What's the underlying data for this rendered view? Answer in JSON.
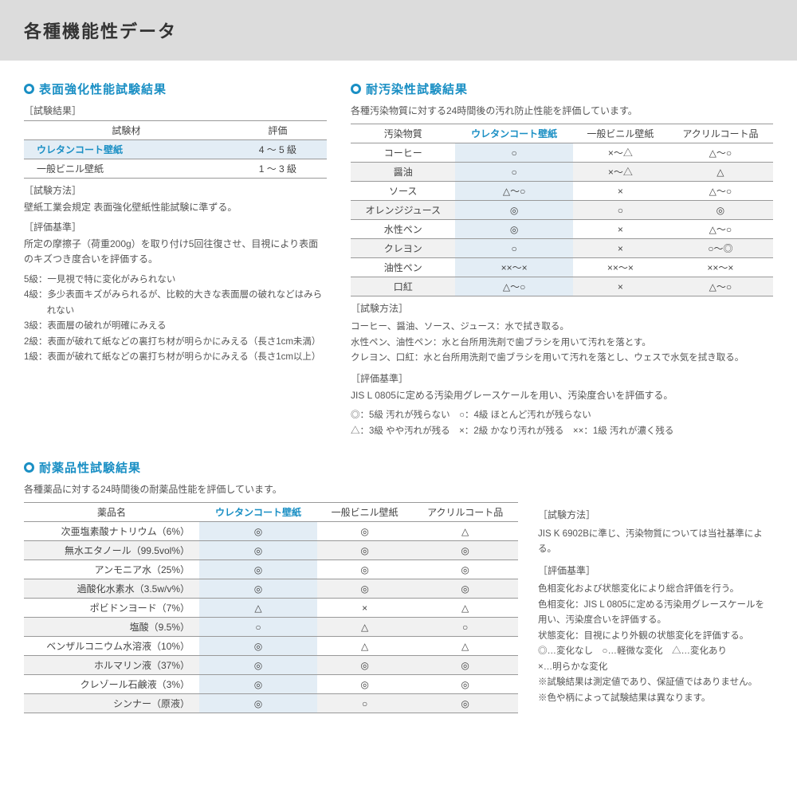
{
  "header": "各種機能性データ",
  "s1": {
    "title": "表面強化性能試験結果",
    "sub_results": "［試験結果］",
    "th1": "試験材",
    "th2": "評価",
    "rows": [
      {
        "mat": "ウレタンコート壁紙",
        "val": "4 〜 5 級",
        "u": true
      },
      {
        "mat": "一般ビニル壁紙",
        "val": "1 〜 3 級",
        "u": false
      }
    ],
    "sub_method": "［試験方法］",
    "method": "壁紙工業会規定 表面強化壁紙性能試験に準ずる。",
    "sub_crit": "［評価基準］",
    "crit": "所定の摩擦子（荷重200g）を取り付け5回往復させ、目視により表面のキズつき度合いを評価する。",
    "grades": [
      "5級：一見視で特に変化がみられない",
      "4級：多少表面キズがみられるが、比較的大きな表面層の破れなどはみられない",
      "3級：表面層の破れが明確にみえる",
      "2級：表面が破れて紙などの裏打ち材が明らかにみえる（長さ1cm未満）",
      "1級：表面が破れて紙などの裏打ち材が明らかにみえる（長さ1cm以上）"
    ]
  },
  "s2": {
    "title": "耐汚染性試験結果",
    "desc": "各種汚染物質に対する24時間後の汚れ防止性能を評価しています。",
    "th": [
      "汚染物質",
      "ウレタンコート壁紙",
      "一般ビニル壁紙",
      "アクリルコート品"
    ],
    "rows": [
      {
        "n": "コーヒー",
        "a": "○",
        "b": "×〜△",
        "c": "△〜○"
      },
      {
        "n": "醤油",
        "a": "○",
        "b": "×〜△",
        "c": "△"
      },
      {
        "n": "ソース",
        "a": "△〜○",
        "b": "×",
        "c": "△〜○"
      },
      {
        "n": "オレンジジュース",
        "a": "◎",
        "b": "○",
        "c": "◎"
      },
      {
        "n": "水性ペン",
        "a": "◎",
        "b": "×",
        "c": "△〜○"
      },
      {
        "n": "クレヨン",
        "a": "○",
        "b": "×",
        "c": "○〜◎"
      },
      {
        "n": "油性ペン",
        "a": "××〜×",
        "b": "××〜×",
        "c": "××〜×"
      },
      {
        "n": "口紅",
        "a": "△〜○",
        "b": "×",
        "c": "△〜○"
      }
    ],
    "sub_method": "［試験方法］",
    "method": [
      "コーヒー、醤油、ソース、ジュース：水で拭き取る。",
      "水性ペン、油性ペン：水と台所用洗剤で歯ブラシを用いて汚れを落とす。",
      "クレヨン、口紅：水と台所用洗剤で歯ブラシを用いて汚れを落とし、ウェスで水気を拭き取る。"
    ],
    "sub_crit": "［評価基準］",
    "crit": "JIS L 0805に定める汚染用グレースケールを用い、汚染度合いを評価する。",
    "legend": [
      "◎：5級 汚れが残らない　○：4級 ほとんど汚れが残らない",
      "△：3級 やや汚れが残る　×：2級 かなり汚れが残る　××：1級 汚れが濃く残る"
    ]
  },
  "s3": {
    "title": "耐薬品性試験結果",
    "desc": "各種薬品に対する24時間後の耐薬品性能を評価しています。",
    "th": [
      "薬品名",
      "ウレタンコート壁紙",
      "一般ビニル壁紙",
      "アクリルコート品"
    ],
    "rows": [
      {
        "n": "次亜塩素酸ナトリウム（6%）",
        "a": "◎",
        "b": "◎",
        "c": "△"
      },
      {
        "n": "無水エタノール（99.5vol%）",
        "a": "◎",
        "b": "◎",
        "c": "◎"
      },
      {
        "n": "アンモニア水（25%）",
        "a": "◎",
        "b": "◎",
        "c": "◎"
      },
      {
        "n": "過酸化水素水（3.5w/v%）",
        "a": "◎",
        "b": "◎",
        "c": "◎"
      },
      {
        "n": "ポビドンヨード（7%）",
        "a": "△",
        "b": "×",
        "c": "△"
      },
      {
        "n": "塩酸（9.5%）",
        "a": "○",
        "b": "△",
        "c": "○"
      },
      {
        "n": "ベンザルコニウム水溶液（10%）",
        "a": "◎",
        "b": "△",
        "c": "△"
      },
      {
        "n": "ホルマリン液（37%）",
        "a": "◎",
        "b": "◎",
        "c": "◎"
      },
      {
        "n": "クレゾール石鹸液（3%）",
        "a": "◎",
        "b": "◎",
        "c": "◎"
      },
      {
        "n": "シンナー（原液）",
        "a": "◎",
        "b": "○",
        "c": "◎"
      }
    ],
    "sub_method": "［試験方法］",
    "method": "JIS K 6902Bに準じ、汚染物質については当社基準による。",
    "sub_crit": "［評価基準］",
    "crit": [
      "色相変化および状態変化により総合評価を行う。",
      "色相変化：JIS L 0805に定める汚染用グレースケールを用い、汚染度合いを評価する。",
      "状態変化：目視により外観の状態変化を評価する。",
      "◎…変化なし　○…軽微な変化　△…変化あり",
      "×…明らかな変化",
      "※試験結果は測定値であり、保証値ではありません。",
      "※色や柄によって試験結果は異なります。"
    ]
  }
}
